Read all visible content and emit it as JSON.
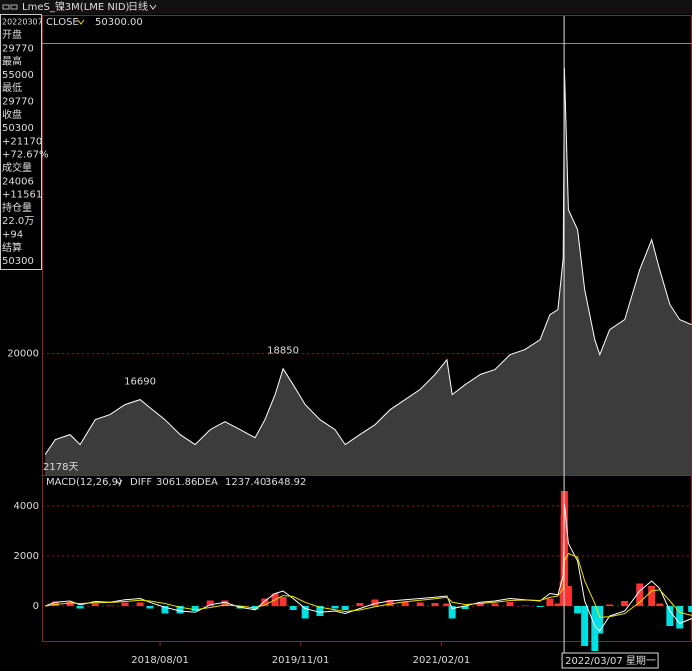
{
  "header": {
    "title": "LmeS_镍3M(LME NID)",
    "period": "日线"
  },
  "info": {
    "date": "20220307",
    "rows": [
      {
        "text": "开盘",
        "color": "#ffffff"
      },
      {
        "text": "29770",
        "color": "#ff3232"
      },
      {
        "text": "最高",
        "color": "#ffffff"
      },
      {
        "text": "55000",
        "color": "#ff3232"
      },
      {
        "text": "最低",
        "color": "#ffffff"
      },
      {
        "text": "29770",
        "color": "#ff3232"
      },
      {
        "text": "收盘",
        "color": "#ffffff"
      },
      {
        "text": "50300",
        "color": "#ff3232"
      },
      {
        "text": "+21170",
        "color": "#ff3232"
      },
      {
        "text": "+72.67%",
        "color": "#ff3232"
      },
      {
        "text": "成交量",
        "color": "#ffffff"
      },
      {
        "text": "24006",
        "color": "#e8e000"
      },
      {
        "text": "+11561",
        "color": "#ff3232"
      },
      {
        "text": "持仓量",
        "color": "#ffffff"
      },
      {
        "text": "22.0万",
        "color": "#e8e000"
      },
      {
        "text": "+94",
        "color": "#ff3232"
      },
      {
        "text": "结算",
        "color": "#ffffff"
      },
      {
        "text": "50300",
        "color": "#e8e000"
      }
    ]
  },
  "cursor": {
    "x": "2022/03/07",
    "label": "2022/03/07 星期一"
  },
  "chart_data": [
    {
      "type": "area",
      "log_scale": true,
      "corner_label": "2178天",
      "cursor_readout": "50300.00",
      "xlim": [
        "2017/07/13",
        "2023/04/27"
      ],
      "ylim": [
        12400,
        68000
      ],
      "yticks": [
        20000
      ],
      "grid": true,
      "x": [
        "2017/07/23",
        "2017/08/25",
        "2017/10/12",
        "2017/11/14",
        "2018/01/02",
        "2018/02/19",
        "2018/04/09",
        "2018/05/28",
        "2018/06/29",
        "2018/08/17",
        "2018/10/05",
        "2018/11/23",
        "2019/01/11",
        "2019/02/28",
        "2019/04/18",
        "2019/06/06",
        "2019/07/08",
        "2019/08/10",
        "2019/09/05",
        "2019/10/08",
        "2019/11/16",
        "2020/01/03",
        "2020/02/21",
        "2020/03/25",
        "2020/05/12",
        "2020/06/30",
        "2020/08/18",
        "2020/10/06",
        "2020/11/24",
        "2021/01/11",
        "2021/02/19",
        "2021/03/08",
        "2021/04/19",
        "2021/06/07",
        "2021/07/25",
        "2021/09/12",
        "2021/10/31",
        "2021/12/19",
        "2022/01/20",
        "2022/02/15",
        "2022/03/04",
        "2022/03/07",
        "2022/03/08",
        "2022/03/21",
        "2022/04/20",
        "2022/05/13",
        "2022/06/15",
        "2022/07/01",
        "2022/08/02",
        "2022/09/20",
        "2022/11/08",
        "2022/12/17",
        "2023/01/12",
        "2023/02/14",
        "2023/03/18",
        "2023/04/26"
      ],
      "series": [
        {
          "name": "CLOSE",
          "color": "#ffffff",
          "fill": "#3c3c3c",
          "values": [
            13440,
            14250,
            14540,
            13980,
            15420,
            15730,
            16360,
            16690,
            16170,
            15420,
            14540,
            13980,
            14830,
            15300,
            14830,
            14360,
            15420,
            17020,
            18850,
            17700,
            16360,
            15420,
            14830,
            13980,
            14540,
            15120,
            16040,
            16690,
            17370,
            18420,
            19530,
            17020,
            17700,
            18420,
            18780,
            19920,
            20320,
            21130,
            23320,
            23780,
            29130,
            50300,
            61660,
            35260,
            32580,
            25730,
            21130,
            19920,
            21980,
            22870,
            27840,
            31330,
            27840,
            24260,
            22870,
            22420
          ],
          "value_labels": [
            null,
            null,
            null,
            null,
            null,
            null,
            null,
            "16690",
            null,
            null,
            null,
            null,
            null,
            null,
            null,
            null,
            null,
            null,
            "18850",
            null,
            null,
            null,
            null,
            null,
            null,
            null,
            null,
            null,
            null,
            null,
            null,
            null,
            null,
            null,
            null,
            null,
            null,
            null,
            null,
            null,
            null,
            null,
            null,
            null,
            null,
            null,
            null,
            null,
            null,
            null,
            null,
            null,
            null,
            null,
            null,
            null
          ]
        }
      ]
    },
    {
      "type": "line",
      "title": "MACD(12,26,9)",
      "xlim": [
        "2017/07/13",
        "2023/04/27"
      ],
      "ylim": [
        -1400,
        5120
      ],
      "yticks": [
        0,
        2000,
        4000
      ],
      "grid": true,
      "xticks": [
        "2018/08/01",
        "2019/11/01",
        "2021/02/01"
      ],
      "x": [
        "2017/07/23",
        "2017/08/25",
        "2017/10/12",
        "2017/11/14",
        "2018/01/02",
        "2018/02/19",
        "2018/04/09",
        "2018/05/28",
        "2018/06/29",
        "2018/08/17",
        "2018/10/05",
        "2018/11/23",
        "2019/01/11",
        "2019/02/28",
        "2019/04/18",
        "2019/06/06",
        "2019/07/08",
        "2019/08/10",
        "2019/09/05",
        "2019/10/08",
        "2019/11/16",
        "2020/01/03",
        "2020/02/21",
        "2020/03/25",
        "2020/05/12",
        "2020/06/30",
        "2020/08/18",
        "2020/10/06",
        "2020/11/24",
        "2021/01/11",
        "2021/02/19",
        "2021/03/08",
        "2021/04/19",
        "2021/06/07",
        "2021/07/25",
        "2021/09/12",
        "2021/10/31",
        "2021/12/19",
        "2022/01/20",
        "2022/02/15",
        "2022/03/04",
        "2022/03/07",
        "2022/03/08",
        "2022/03/21",
        "2022/04/20",
        "2022/05/13",
        "2022/06/15",
        "2022/07/01",
        "2022/08/02",
        "2022/09/20",
        "2022/11/08",
        "2022/12/17",
        "2023/01/12",
        "2023/02/14",
        "2023/03/18",
        "2023/04/26"
      ],
      "series": [
        {
          "kind": "bar",
          "color": "#ff3232",
          "negative_color": "#00e0e0",
          "readout": "3648.92",
          "values": [
            0,
            180,
            160,
            -100,
            100,
            20,
            140,
            140,
            -100,
            -300,
            -300,
            -200,
            220,
            220,
            -100,
            -140,
            300,
            500,
            360,
            -160,
            -500,
            -400,
            -100,
            -160,
            120,
            260,
            240,
            160,
            140,
            120,
            100,
            -500,
            -120,
            100,
            100,
            160,
            20,
            -40,
            300,
            100,
            1000,
            3648.92,
            4600,
            800,
            -300,
            -1600,
            -1800,
            -1100,
            60,
            200,
            900,
            800,
            100,
            -800,
            -900,
            -240
          ]
        },
        {
          "name": "DIFF",
          "color": "#ffffff",
          "readout": "3061.86",
          "values": [
            0,
            150,
            200,
            50,
            180,
            150,
            250,
            300,
            150,
            -50,
            -200,
            -250,
            50,
            150,
            -50,
            -150,
            200,
            500,
            600,
            300,
            -100,
            -250,
            -200,
            -300,
            -100,
            100,
            200,
            250,
            300,
            350,
            400,
            -100,
            0,
            150,
            200,
            300,
            250,
            200,
            500,
            450,
            1200,
            3061.86,
            4100,
            2500,
            1800,
            200,
            -800,
            -1000,
            -400,
            -200,
            600,
            1000,
            700,
            -200,
            -700,
            -500
          ]
        },
        {
          "name": "DEA",
          "color": "#e8e000",
          "readout": "1237.40",
          "values": [
            0,
            60,
            120,
            100,
            130,
            140,
            180,
            230,
            200,
            100,
            -50,
            -150,
            -60,
            40,
            0,
            -80,
            50,
            250,
            420,
            380,
            150,
            -50,
            -150,
            -220,
            -160,
            -30,
            80,
            170,
            230,
            290,
            350,
            150,
            60,
            100,
            150,
            220,
            240,
            220,
            350,
            400,
            700,
            1237.4,
            1800,
            2100,
            1950,
            1000,
            100,
            -450,
            -430,
            -300,
            150,
            600,
            650,
            200,
            -250,
            -380
          ]
        }
      ]
    }
  ]
}
